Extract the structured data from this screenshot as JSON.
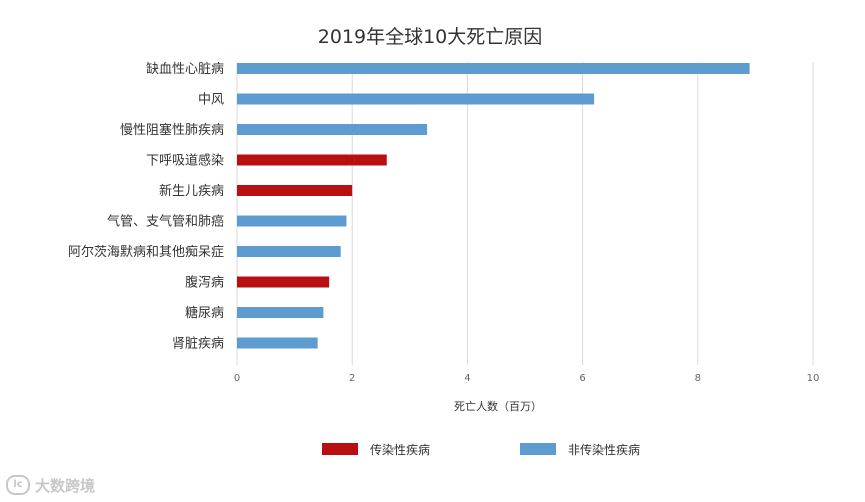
{
  "chart_data": {
    "type": "bar",
    "orientation": "horizontal",
    "title": "2019年全球10大死亡原因",
    "xlabel": "死亡人数（百万）",
    "ylabel": "",
    "xlim": [
      0,
      10
    ],
    "xticks": [
      0,
      2,
      4,
      6,
      8,
      10
    ],
    "grid": true,
    "legend_position": "bottom",
    "categories": [
      "缺血性心脏病",
      "中风",
      "慢性阻塞性肺疾病",
      "下呼吸道感染",
      "新生儿疾病",
      "气管、支气管和肺癌",
      "阿尔茨海默病和其他痴呆症",
      "腹泻病",
      "糖尿病",
      "肾脏疾病"
    ],
    "values": [
      8.9,
      6.2,
      3.3,
      2.6,
      2.0,
      1.9,
      1.8,
      1.6,
      1.5,
      1.4
    ],
    "group": [
      "non",
      "non",
      "non",
      "comm",
      "comm",
      "non",
      "non",
      "comm",
      "non",
      "non"
    ],
    "series": [
      {
        "key": "comm",
        "name": "传染性疾病",
        "color": "#b80f12"
      },
      {
        "key": "non",
        "name": "非传染性疾病",
        "color": "#5e9bd1"
      }
    ]
  },
  "watermark": {
    "logo": "lc",
    "text": "大数跨境"
  }
}
